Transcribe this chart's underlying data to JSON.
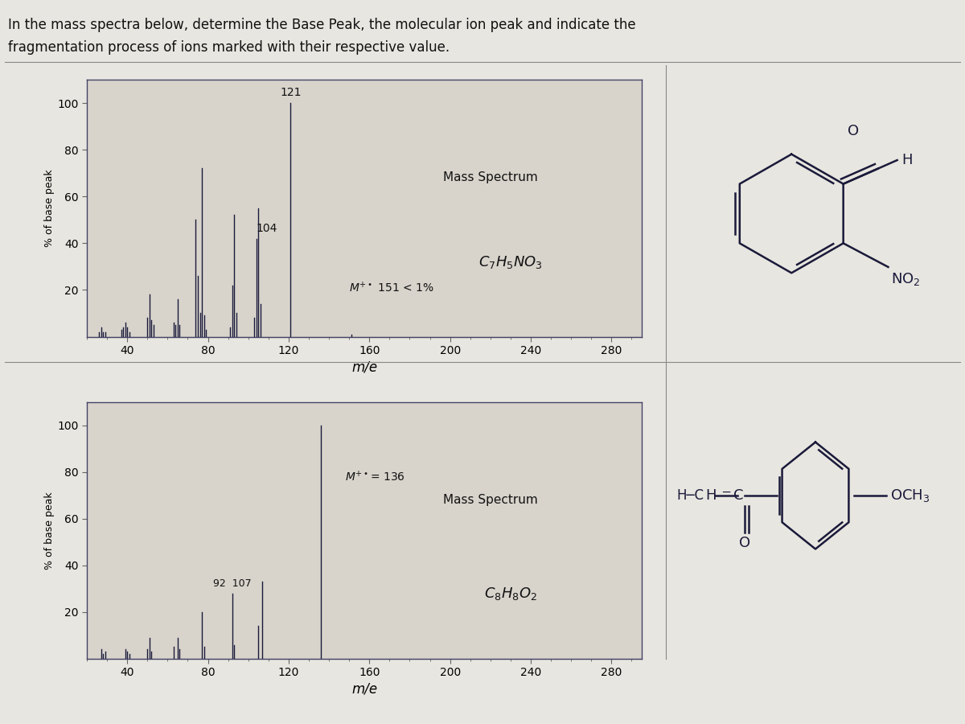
{
  "title_line1": "In the mass spectra below, determine the Base Peak, the molecular ion peak and indicate the",
  "title_line2": "fragmentation process of ions marked with their respective value.",
  "bg_color": "#e8e6e0",
  "plot_bg_color": "#d8d4cc",
  "border_color": "#444466",
  "spectrum1": {
    "title": "Mass Spectrum",
    "ylabel": "% of base peak",
    "xlabel": "m/e",
    "formula": "$C_7H_5NO_3$",
    "annotation1": "$M^{+\\bullet}$ 151 < 1%",
    "peaks": [
      [
        26,
        2
      ],
      [
        27,
        4
      ],
      [
        28,
        2
      ],
      [
        29,
        2
      ],
      [
        37,
        3
      ],
      [
        38,
        4
      ],
      [
        39,
        6
      ],
      [
        40,
        4
      ],
      [
        41,
        2
      ],
      [
        50,
        8
      ],
      [
        51,
        18
      ],
      [
        52,
        7
      ],
      [
        53,
        5
      ],
      [
        63,
        6
      ],
      [
        64,
        5
      ],
      [
        65,
        16
      ],
      [
        66,
        5
      ],
      [
        74,
        50
      ],
      [
        75,
        26
      ],
      [
        76,
        10
      ],
      [
        77,
        72
      ],
      [
        78,
        9
      ],
      [
        79,
        3
      ],
      [
        91,
        4
      ],
      [
        92,
        22
      ],
      [
        93,
        52
      ],
      [
        94,
        10
      ],
      [
        103,
        8
      ],
      [
        104,
        42
      ],
      [
        105,
        55
      ],
      [
        106,
        14
      ],
      [
        121,
        100
      ],
      [
        151,
        0.8
      ]
    ],
    "ylim": [
      0,
      110
    ],
    "xlim": [
      20,
      295
    ]
  },
  "spectrum2": {
    "title": "Mass Spectrum",
    "ylabel": "% of base peak",
    "xlabel": "m/e",
    "formula": "$C_8H_8O_2$",
    "annotation1": "$M^{+\\bullet}$= 136",
    "peaks": [
      [
        27,
        4
      ],
      [
        28,
        2
      ],
      [
        29,
        3
      ],
      [
        39,
        4
      ],
      [
        40,
        3
      ],
      [
        41,
        2
      ],
      [
        50,
        4
      ],
      [
        51,
        9
      ],
      [
        52,
        3
      ],
      [
        63,
        5
      ],
      [
        65,
        9
      ],
      [
        66,
        4
      ],
      [
        77,
        20
      ],
      [
        78,
        5
      ],
      [
        92,
        28
      ],
      [
        93,
        6
      ],
      [
        105,
        14
      ],
      [
        107,
        33
      ],
      [
        136,
        100
      ]
    ],
    "ylim": [
      0,
      110
    ],
    "xlim": [
      20,
      295
    ]
  }
}
